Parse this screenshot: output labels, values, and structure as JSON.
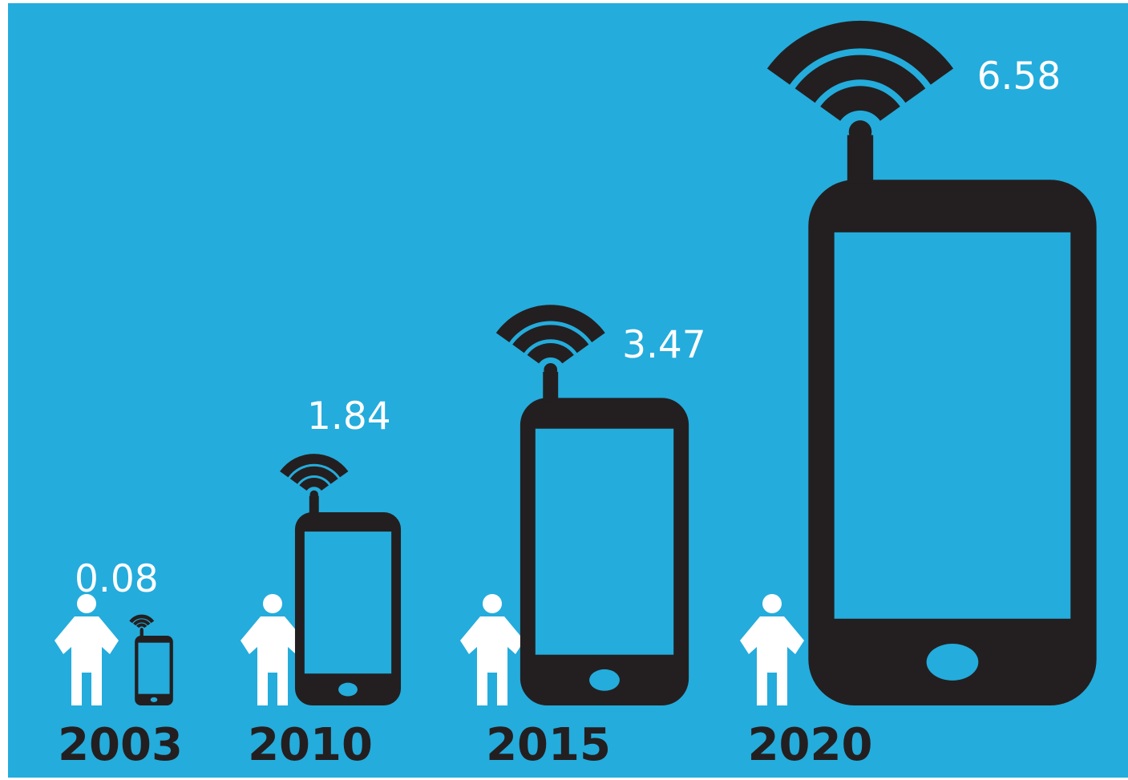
{
  "colors": {
    "background": "#24ACDC",
    "phone": "#231F20",
    "person": "#FFFFFF",
    "value_text": "#FFFFFF",
    "year_text": "#231F20"
  },
  "icons": {
    "person": "person-icon",
    "phone": "smartphone-icon",
    "signal": "wifi-signal-icon"
  },
  "chart_data": {
    "type": "bar",
    "title": "",
    "xlabel": "",
    "ylabel": "",
    "categories": [
      "2003",
      "2010",
      "2015",
      "2020"
    ],
    "values": [
      0.08,
      1.84,
      3.47,
      6.58
    ],
    "value_labels": [
      "0.08",
      "1.84",
      "3.47",
      "6.58"
    ],
    "legend": "none",
    "grid": false
  }
}
